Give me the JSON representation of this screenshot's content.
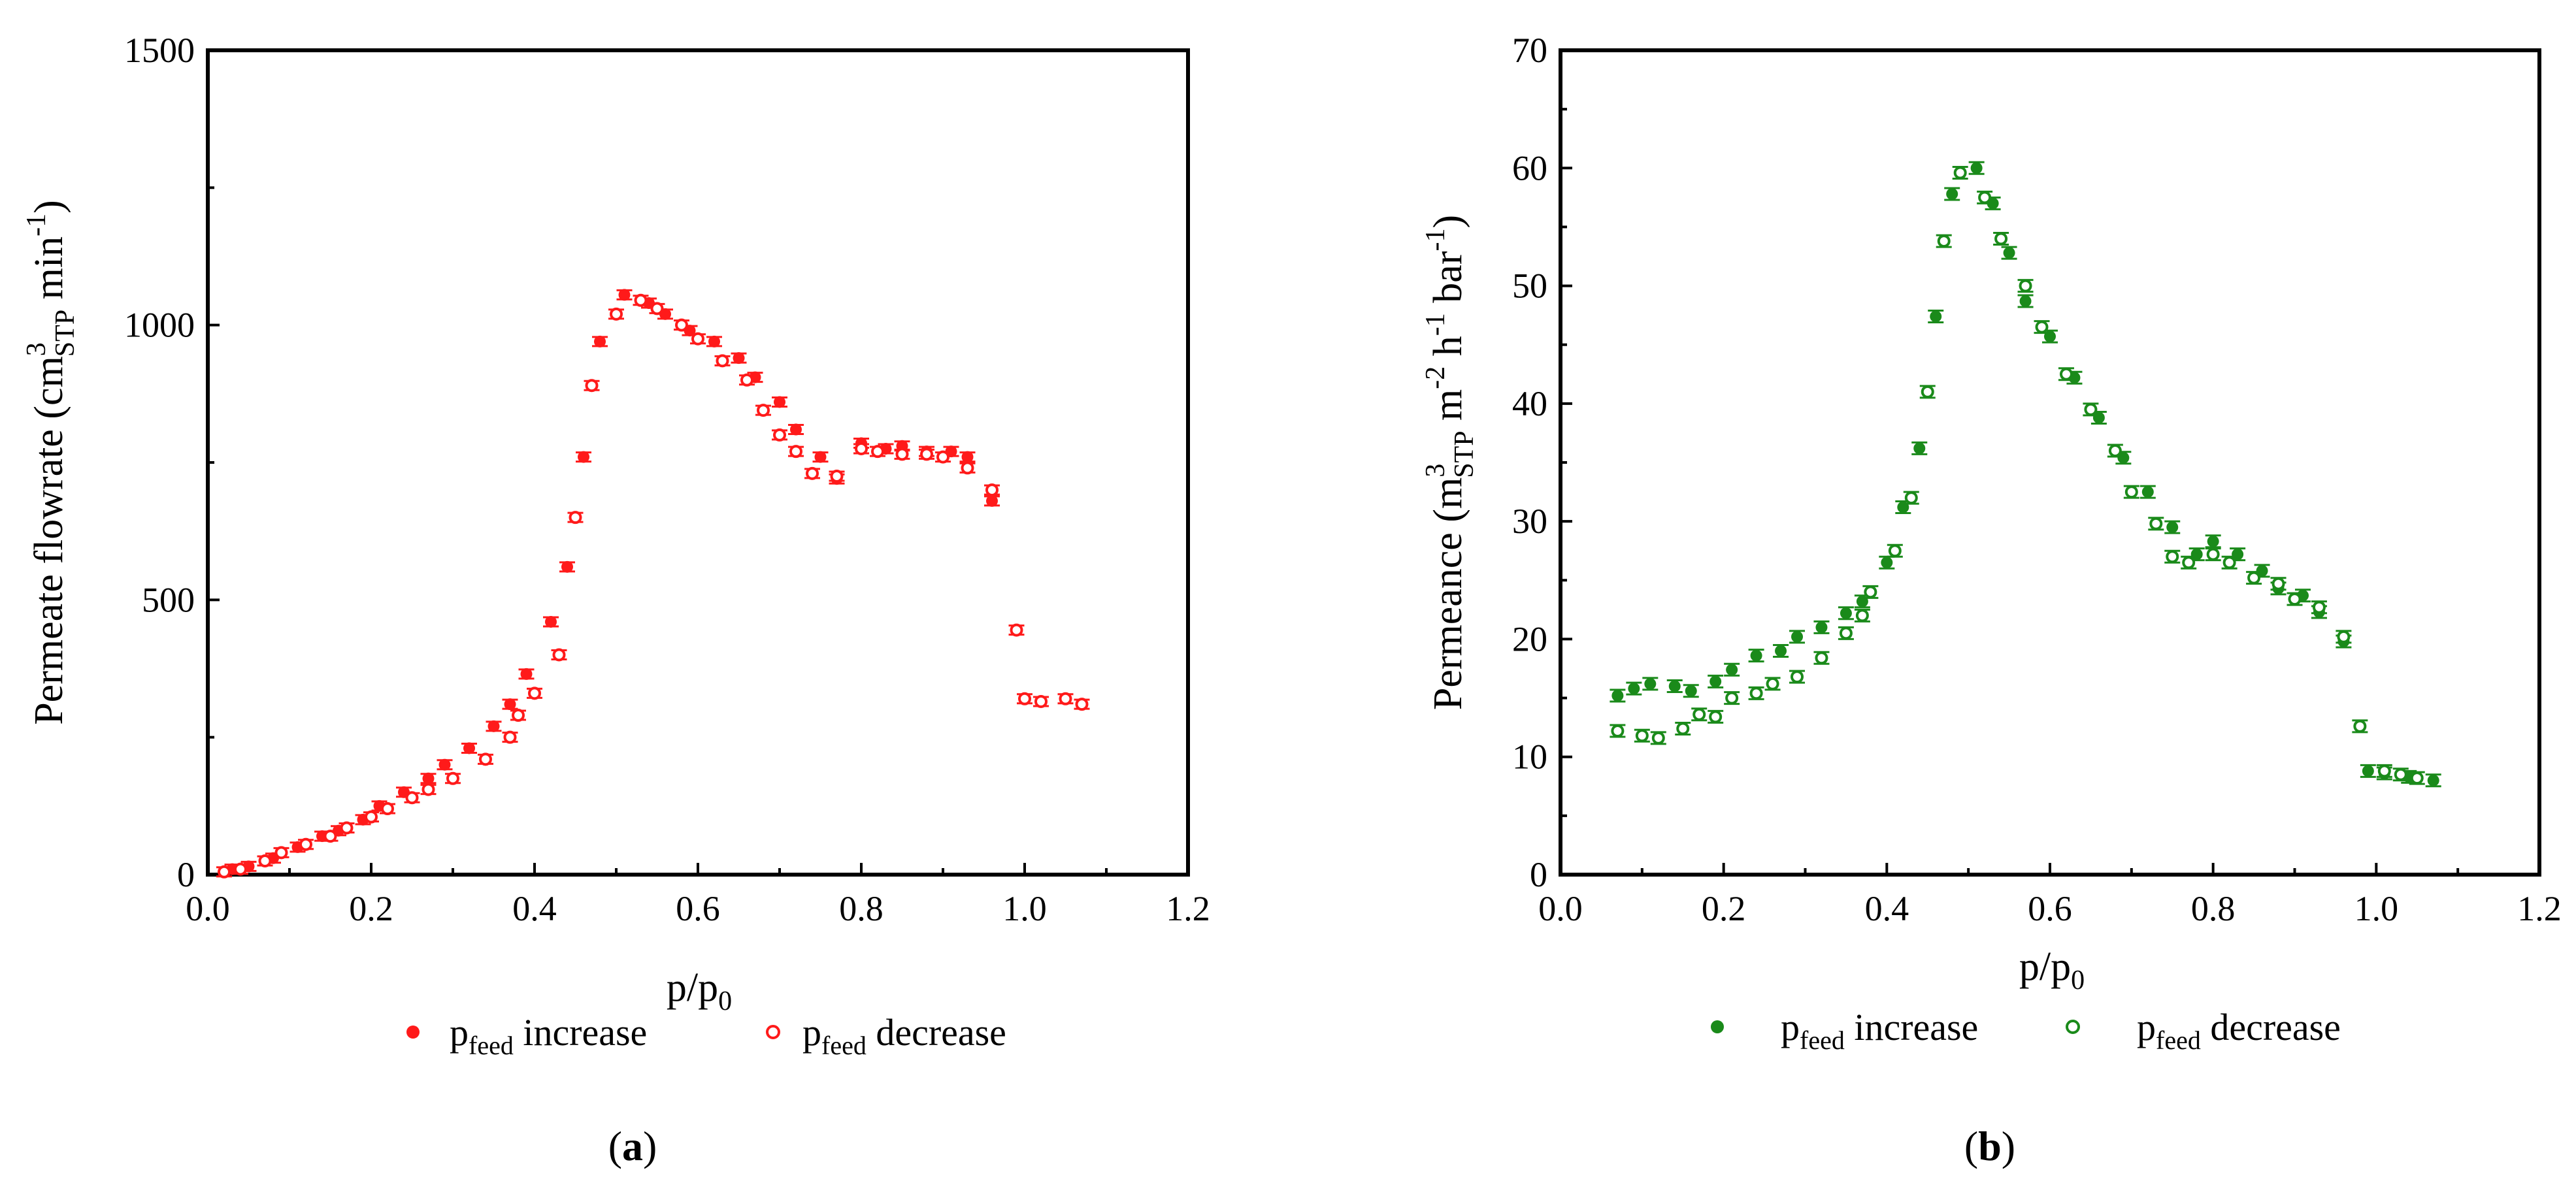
{
  "figure": {
    "panels": [
      {
        "id": "a",
        "panel_label": "(a)",
        "color": "#ff1a1a",
        "ylabel": "Permeate flowrate (cm³STP min⁻¹)",
        "ylabel_parts": {
          "pre": "Permeate flowrate (cm",
          "sup": "3",
          "sub": "STP",
          "post": " min",
          "sup2": "-1",
          "end": ")"
        },
        "xlabel": "p/p0",
        "xlabel_parts": {
          "main": "p/p",
          "sub": "0"
        },
        "legend": [
          {
            "main": "p",
            "sub": "feed",
            "text": " increase",
            "marker": "filled"
          },
          {
            "main": "p",
            "sub": "feed",
            "text": " decrease",
            "marker": "open"
          }
        ]
      },
      {
        "id": "b",
        "panel_label": "(b)",
        "color": "#1a8a1a",
        "ylabel": "Permeance (m³STP m⁻² h⁻¹ bar⁻¹)",
        "ylabel_parts": {
          "pre": "Permeance (m",
          "sup": "3",
          "sub": "STP",
          "post": " m",
          "sup2": "-2",
          "mid": " h",
          "sup3": "-1",
          "tail": " bar",
          "sup4": "-1",
          "end": ")"
        },
        "xlabel": "p/p0",
        "xlabel_parts": {
          "main": "p/p",
          "sub": "0"
        },
        "legend": [
          {
            "main": "p",
            "sub": "feed",
            "text": " increase",
            "marker": "filled"
          },
          {
            "main": "p",
            "sub": "feed",
            "text": " decrease",
            "marker": "open"
          }
        ]
      }
    ]
  },
  "chart_data": [
    {
      "type": "scatter",
      "title": "",
      "xlabel": "p/p0",
      "ylabel": "Permeate flowrate (cm3STP min-1)",
      "xlim": [
        0.0,
        1.2
      ],
      "ylim": [
        0,
        1500
      ],
      "xticks": [
        0.0,
        0.2,
        0.4,
        0.6,
        0.8,
        1.0,
        1.2
      ],
      "xtick_labels": [
        "0.0",
        "0.2",
        "0.4",
        "0.6",
        "0.8",
        "1.0",
        "1.2"
      ],
      "yticks": [
        0,
        500,
        1000,
        1500
      ],
      "ytick_labels": [
        "0",
        "500",
        "1000",
        "1500"
      ],
      "series": [
        {
          "name": "pfeed increase",
          "marker": "filled",
          "x": [
            0.03,
            0.05,
            0.08,
            0.11,
            0.14,
            0.16,
            0.19,
            0.21,
            0.24,
            0.27,
            0.29,
            0.32,
            0.35,
            0.37,
            0.39,
            0.42,
            0.44,
            0.46,
            0.48,
            0.51,
            0.54,
            0.56,
            0.59,
            0.62,
            0.65,
            0.67,
            0.7,
            0.72,
            0.75,
            0.77,
            0.8,
            0.83,
            0.85,
            0.88,
            0.91,
            0.93,
            0.96
          ],
          "y": [
            10,
            15,
            30,
            50,
            70,
            80,
            100,
            125,
            150,
            175,
            200,
            230,
            270,
            310,
            365,
            460,
            560,
            760,
            970,
            1055,
            1040,
            1020,
            990,
            970,
            940,
            905,
            860,
            810,
            760,
            720,
            785,
            775,
            780,
            770,
            770,
            760,
            680
          ]
        },
        {
          "name": "pfeed decrease",
          "marker": "open",
          "x": [
            0.02,
            0.04,
            0.07,
            0.09,
            0.12,
            0.15,
            0.17,
            0.2,
            0.22,
            0.25,
            0.27,
            0.3,
            0.34,
            0.37,
            0.38,
            0.4,
            0.43,
            0.45,
            0.47,
            0.5,
            0.53,
            0.55,
            0.58,
            0.6,
            0.63,
            0.66,
            0.68,
            0.7,
            0.72,
            0.74,
            0.77,
            0.8,
            0.82,
            0.85,
            0.88,
            0.9,
            0.93,
            0.96,
            0.99,
            1.0,
            1.02,
            1.05,
            1.07
          ],
          "y": [
            5,
            10,
            25,
            40,
            55,
            70,
            85,
            105,
            120,
            140,
            155,
            175,
            210,
            250,
            290,
            330,
            400,
            650,
            890,
            1020,
            1045,
            1030,
            1000,
            975,
            935,
            900,
            845,
            800,
            770,
            730,
            725,
            775,
            770,
            765,
            765,
            760,
            740,
            700,
            445,
            320,
            315,
            320,
            310
          ]
        }
      ]
    },
    {
      "type": "scatter",
      "title": "",
      "xlabel": "p/p0",
      "ylabel": "Permeance (m3STP m-2 h-1 bar-1)",
      "xlim": [
        0.0,
        1.2
      ],
      "ylim": [
        0,
        70
      ],
      "xticks": [
        0.0,
        0.2,
        0.4,
        0.6,
        0.8,
        1.0,
        1.2
      ],
      "xtick_labels": [
        "0.0",
        "0.2",
        "0.4",
        "0.6",
        "0.8",
        "1.0",
        "1.2"
      ],
      "yticks": [
        0,
        10,
        20,
        30,
        40,
        50,
        60,
        70
      ],
      "ytick_labels": [
        "0",
        "10",
        "20",
        "30",
        "40",
        "50",
        "60",
        "70"
      ],
      "series": [
        {
          "name": "pfeed increase",
          "marker": "filled",
          "x": [
            0.07,
            0.09,
            0.11,
            0.14,
            0.16,
            0.19,
            0.21,
            0.24,
            0.27,
            0.29,
            0.32,
            0.35,
            0.37,
            0.4,
            0.42,
            0.44,
            0.46,
            0.48,
            0.51,
            0.53,
            0.55,
            0.57,
            0.6,
            0.63,
            0.66,
            0.69,
            0.72,
            0.75,
            0.78,
            0.8,
            0.83,
            0.86,
            0.88,
            0.91,
            0.93,
            0.96,
            0.99,
            1.01,
            1.04,
            1.07
          ],
          "y": [
            15.2,
            15.8,
            16.2,
            16.0,
            15.6,
            16.4,
            17.4,
            18.6,
            19.0,
            20.2,
            21.0,
            22.2,
            23.2,
            26.5,
            31.2,
            36.2,
            47.4,
            57.8,
            60.0,
            57.0,
            52.8,
            48.7,
            45.7,
            42.2,
            38.8,
            35.4,
            32.5,
            29.5,
            27.2,
            28.3,
            27.2,
            25.8,
            24.3,
            23.7,
            22.3,
            19.8,
            8.8,
            8.6,
            8.3,
            8.0
          ]
        },
        {
          "name": "pfeed decrease",
          "marker": "open",
          "x": [
            0.07,
            0.1,
            0.12,
            0.15,
            0.17,
            0.19,
            0.21,
            0.24,
            0.26,
            0.29,
            0.32,
            0.35,
            0.37,
            0.38,
            0.41,
            0.43,
            0.45,
            0.47,
            0.49,
            0.52,
            0.54,
            0.57,
            0.59,
            0.62,
            0.65,
            0.68,
            0.7,
            0.73,
            0.75,
            0.77,
            0.8,
            0.82,
            0.85,
            0.88,
            0.9,
            0.93,
            0.96,
            0.98,
            1.01,
            1.03,
            1.05
          ],
          "y": [
            12.2,
            11.8,
            11.6,
            12.4,
            13.6,
            13.4,
            15.0,
            15.4,
            16.2,
            16.8,
            18.4,
            20.5,
            22.0,
            24.0,
            27.5,
            32.0,
            41.0,
            53.8,
            59.6,
            57.5,
            54.0,
            50.0,
            46.5,
            42.5,
            39.5,
            36.0,
            32.5,
            29.8,
            27.0,
            26.5,
            27.2,
            26.5,
            25.2,
            24.7,
            23.4,
            22.7,
            20.2,
            12.6,
            8.8,
            8.5,
            8.2
          ]
        }
      ]
    }
  ]
}
